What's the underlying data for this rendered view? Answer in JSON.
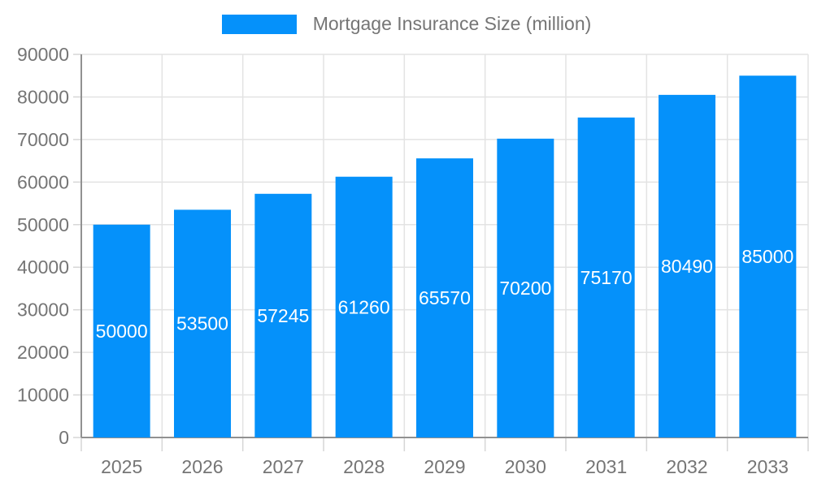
{
  "chart_data": {
    "type": "bar",
    "title": "Mortgage Insurance Size (million)",
    "legend_entries": [
      "Mortgage Insurance Size (million)"
    ],
    "legend_position": "top-center",
    "categories": [
      "2025",
      "2026",
      "2027",
      "2028",
      "2029",
      "2030",
      "2031",
      "2032",
      "2033"
    ],
    "values": [
      50000,
      53500,
      57245,
      61260,
      65570,
      70200,
      75170,
      80490,
      85000
    ],
    "xlabel": "",
    "ylabel": "",
    "ylim": [
      0,
      90000
    ],
    "ytick_step": 10000,
    "ytick_labels": [
      "0",
      "10000",
      "20000",
      "30000",
      "40000",
      "50000",
      "60000",
      "70000",
      "80000",
      "90000"
    ],
    "grid": true,
    "value_labels_inside_bars": true,
    "colors": {
      "bar": "#0591fa",
      "value_label": "#ffffff",
      "axis_text": "#757575",
      "legend_text": "#757575",
      "gridline": "#e3e3e3",
      "tick": "#d6d6d6",
      "axis_line": "#919191",
      "background": "#ffffff"
    }
  }
}
